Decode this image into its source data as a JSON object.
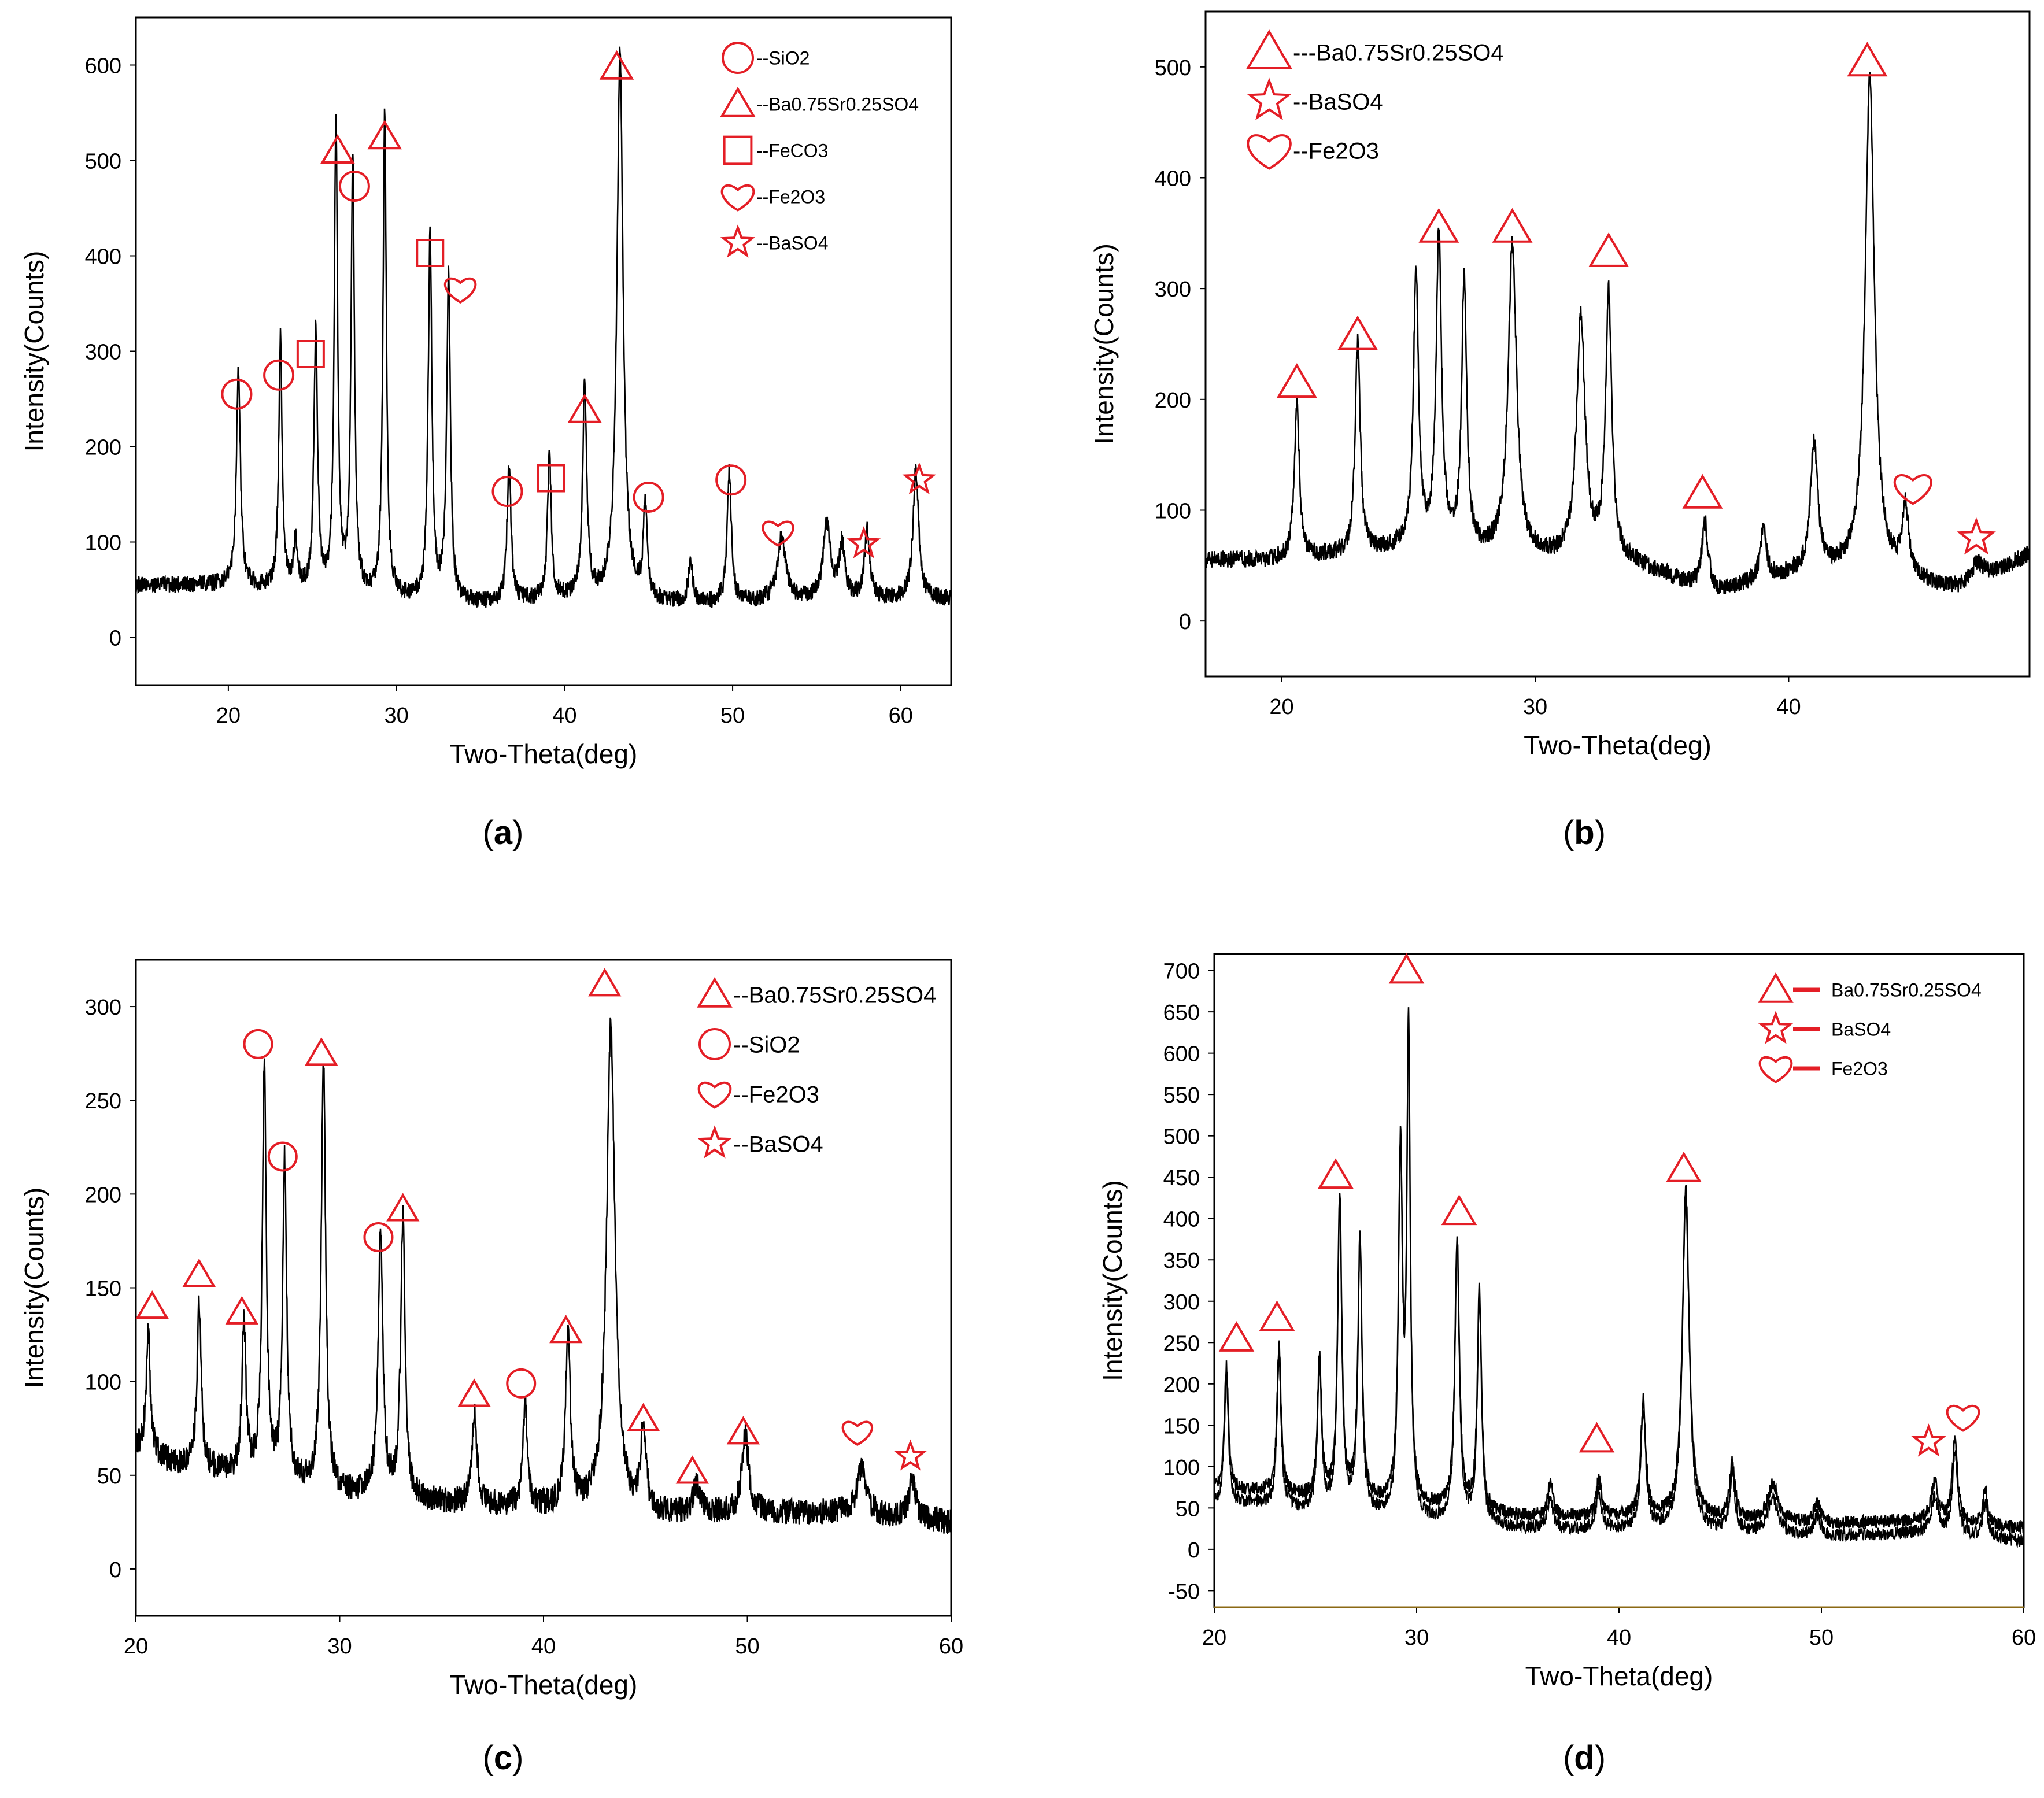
{
  "figure": {
    "accent_color": "#E41E26",
    "line_color": "#000000",
    "axis_color": "#000000"
  },
  "chart_data": [
    {
      "id": "a",
      "type": "line",
      "caption": "a",
      "xlabel": "Two-Theta(deg)",
      "ylabel": "Intensity(Counts)",
      "xlim": [
        14.5,
        63
      ],
      "ylim": [
        -50,
        650
      ],
      "xticks": [
        20,
        30,
        40,
        50,
        60
      ],
      "yticks": [
        0,
        100,
        200,
        300,
        400,
        500,
        600
      ],
      "baseline": [
        [
          14.5,
          55
        ],
        [
          20,
          55
        ],
        [
          25,
          45
        ],
        [
          30,
          40
        ],
        [
          35,
          35
        ],
        [
          40,
          40
        ],
        [
          45,
          35
        ],
        [
          50,
          35
        ],
        [
          55,
          40
        ],
        [
          60,
          40
        ],
        [
          63,
          40
        ]
      ],
      "noise": 9,
      "peaks": [
        [
          20.6,
          230,
          0.14
        ],
        [
          23.1,
          265,
          0.12
        ],
        [
          24.0,
          50,
          0.15
        ],
        [
          25.2,
          275,
          0.13
        ],
        [
          26.4,
          490,
          0.12
        ],
        [
          27.4,
          460,
          0.12
        ],
        [
          29.3,
          505,
          0.12
        ],
        [
          32.0,
          385,
          0.13
        ],
        [
          33.1,
          340,
          0.13
        ],
        [
          36.7,
          145,
          0.14
        ],
        [
          39.1,
          150,
          0.13
        ],
        [
          41.2,
          220,
          0.15
        ],
        [
          43.3,
          575,
          0.22
        ],
        [
          44.8,
          100,
          0.14
        ],
        [
          47.5,
          45,
          0.15
        ],
        [
          49.8,
          140,
          0.15
        ],
        [
          52.9,
          65,
          0.3
        ],
        [
          55.6,
          75,
          0.25
        ],
        [
          56.5,
          55,
          0.2
        ],
        [
          58.0,
          70,
          0.18
        ],
        [
          60.9,
          135,
          0.2
        ]
      ],
      "legend": [
        {
          "marker": "circle",
          "label": "--SiO2"
        },
        {
          "marker": "triangle",
          "label": "--Ba0.75Sr0.25SO4"
        },
        {
          "marker": "square",
          "label": "--FeCO3"
        },
        {
          "marker": "heart",
          "label": "--Fe2O3"
        },
        {
          "marker": "star",
          "label": "--BaSO4"
        }
      ],
      "annotations": [
        {
          "marker": "circle",
          "x": 20.5,
          "y": 255
        },
        {
          "marker": "circle",
          "x": 23.0,
          "y": 275
        },
        {
          "marker": "square",
          "x": 24.9,
          "y": 297
        },
        {
          "marker": "triangle",
          "x": 26.5,
          "y": 510
        },
        {
          "marker": "circle",
          "x": 27.5,
          "y": 473
        },
        {
          "marker": "triangle",
          "x": 29.3,
          "y": 525
        },
        {
          "marker": "square",
          "x": 32.0,
          "y": 403
        },
        {
          "marker": "heart",
          "x": 33.8,
          "y": 365
        },
        {
          "marker": "circle",
          "x": 36.6,
          "y": 153
        },
        {
          "marker": "square",
          "x": 39.2,
          "y": 167
        },
        {
          "marker": "triangle",
          "x": 41.2,
          "y": 238
        },
        {
          "marker": "triangle",
          "x": 43.1,
          "y": 598
        },
        {
          "marker": "circle",
          "x": 45.0,
          "y": 147
        },
        {
          "marker": "circle",
          "x": 49.9,
          "y": 165
        },
        {
          "marker": "heart",
          "x": 52.7,
          "y": 110
        },
        {
          "marker": "star",
          "x": 57.8,
          "y": 98
        },
        {
          "marker": "star",
          "x": 61.1,
          "y": 165
        }
      ]
    },
    {
      "id": "b",
      "type": "line",
      "caption": "b",
      "xlabel": "Two-Theta(deg)",
      "ylabel": "Intensity(Counts)",
      "xlim": [
        17,
        49.5
      ],
      "ylim": [
        -50,
        550
      ],
      "xticks": [
        20,
        30,
        40
      ],
      "yticks": [
        0,
        100,
        200,
        300,
        400,
        500
      ],
      "baseline": [
        [
          17,
          55
        ],
        [
          20,
          55
        ],
        [
          23,
          60
        ],
        [
          25,
          65
        ],
        [
          28,
          60
        ],
        [
          31,
          55
        ],
        [
          34,
          50
        ],
        [
          37,
          25
        ],
        [
          40,
          40
        ],
        [
          43,
          45
        ],
        [
          45,
          35
        ],
        [
          47,
          25
        ],
        [
          49.5,
          60
        ]
      ],
      "noise": 8,
      "peaks": [
        [
          20.6,
          140,
          0.12
        ],
        [
          23.0,
          190,
          0.12
        ],
        [
          25.3,
          250,
          0.12
        ],
        [
          26.2,
          285,
          0.13
        ],
        [
          27.2,
          245,
          0.12
        ],
        [
          29.1,
          280,
          0.2
        ],
        [
          31.8,
          220,
          0.2
        ],
        [
          32.9,
          240,
          0.15
        ],
        [
          36.7,
          60,
          0.15
        ],
        [
          39.0,
          45,
          0.15
        ],
        [
          41.0,
          115,
          0.18
        ],
        [
          43.2,
          445,
          0.22
        ],
        [
          44.6,
          60,
          0.15
        ],
        [
          47.4,
          20,
          0.4
        ]
      ],
      "legend": [
        {
          "marker": "triangle",
          "label": "---Ba0.75Sr0.25SO4"
        },
        {
          "marker": "star",
          "label": "--BaSO4"
        },
        {
          "marker": "heart",
          "label": "--Fe2O3"
        }
      ],
      "annotations": [
        {
          "marker": "triangle",
          "x": 20.6,
          "y": 215
        },
        {
          "marker": "triangle",
          "x": 23.0,
          "y": 258
        },
        {
          "marker": "triangle",
          "x": 26.2,
          "y": 355
        },
        {
          "marker": "triangle",
          "x": 29.1,
          "y": 355
        },
        {
          "marker": "triangle",
          "x": 32.9,
          "y": 333
        },
        {
          "marker": "triangle",
          "x": 36.6,
          "y": 115
        },
        {
          "marker": "triangle",
          "x": 43.1,
          "y": 505
        },
        {
          "marker": "heart",
          "x": 44.9,
          "y": 120
        },
        {
          "marker": "star",
          "x": 47.4,
          "y": 75
        }
      ]
    },
    {
      "id": "c",
      "type": "line",
      "caption": "c",
      "xlabel": "Two-Theta(deg)",
      "ylabel": "Intensity(Counts)",
      "xlim": [
        20,
        60
      ],
      "ylim": [
        -25,
        325
      ],
      "xticks": [
        20,
        30,
        40,
        50,
        60
      ],
      "yticks": [
        0,
        50,
        100,
        150,
        200,
        250,
        300
      ],
      "baseline": [
        [
          20,
          65
        ],
        [
          22,
          55
        ],
        [
          25,
          50
        ],
        [
          30,
          40
        ],
        [
          35,
          35
        ],
        [
          40,
          32
        ],
        [
          45,
          28
        ],
        [
          50,
          30
        ],
        [
          55,
          30
        ],
        [
          60,
          25
        ]
      ],
      "noise": 7,
      "peaks": [
        [
          20.6,
          65,
          0.12
        ],
        [
          23.1,
          90,
          0.12
        ],
        [
          25.3,
          80,
          0.12
        ],
        [
          26.3,
          220,
          0.12
        ],
        [
          27.3,
          170,
          0.12
        ],
        [
          29.2,
          230,
          0.13
        ],
        [
          32.0,
          140,
          0.14
        ],
        [
          33.1,
          150,
          0.13
        ],
        [
          36.6,
          50,
          0.14
        ],
        [
          39.1,
          55,
          0.13
        ],
        [
          41.2,
          90,
          0.15
        ],
        [
          43.3,
          260,
          0.25
        ],
        [
          44.9,
          45,
          0.15
        ],
        [
          47.5,
          15,
          0.2
        ],
        [
          49.9,
          40,
          0.2
        ],
        [
          55.6,
          25,
          0.25
        ],
        [
          58.1,
          20,
          0.2
        ]
      ],
      "legend": [
        {
          "marker": "triangle",
          "label": "--Ba0.75Sr0.25SO4"
        },
        {
          "marker": "circle",
          "label": "--SiO2"
        },
        {
          "marker": "heart",
          "label": "--Fe2O3"
        },
        {
          "marker": "star",
          "label": "--BaSO4"
        }
      ],
      "annotations": [
        {
          "marker": "triangle",
          "x": 20.8,
          "y": 140
        },
        {
          "marker": "triangle",
          "x": 23.1,
          "y": 157
        },
        {
          "marker": "triangle",
          "x": 25.2,
          "y": 137
        },
        {
          "marker": "circle",
          "x": 26.0,
          "y": 280
        },
        {
          "marker": "circle",
          "x": 27.2,
          "y": 220
        },
        {
          "marker": "triangle",
          "x": 29.1,
          "y": 275
        },
        {
          "marker": "circle",
          "x": 31.9,
          "y": 177
        },
        {
          "marker": "triangle",
          "x": 33.1,
          "y": 192
        },
        {
          "marker": "triangle",
          "x": 36.6,
          "y": 93
        },
        {
          "marker": "circle",
          "x": 38.9,
          "y": 99
        },
        {
          "marker": "triangle",
          "x": 41.1,
          "y": 127
        },
        {
          "marker": "triangle",
          "x": 43.0,
          "y": 312
        },
        {
          "marker": "triangle",
          "x": 44.9,
          "y": 80
        },
        {
          "marker": "triangle",
          "x": 47.3,
          "y": 52
        },
        {
          "marker": "triangle",
          "x": 49.8,
          "y": 73
        },
        {
          "marker": "heart",
          "x": 55.4,
          "y": 73
        },
        {
          "marker": "star",
          "x": 58.0,
          "y": 60
        }
      ]
    },
    {
      "id": "d",
      "type": "line",
      "caption": "d",
      "xlabel": "Two-Theta(deg)",
      "ylabel": "Intensity(Counts)",
      "xlim": [
        20,
        60
      ],
      "ylim": [
        -70,
        720
      ],
      "xticks": [
        20,
        30,
        40,
        50,
        60
      ],
      "yticks": [
        -50,
        0,
        50,
        100,
        150,
        200,
        250,
        300,
        350,
        400,
        450,
        500,
        550,
        600,
        650,
        700
      ],
      "baseline": [
        [
          20,
          70
        ],
        [
          22,
          70
        ],
        [
          25,
          60
        ],
        [
          30,
          50
        ],
        [
          35,
          40
        ],
        [
          40,
          38
        ],
        [
          45,
          35
        ],
        [
          50,
          30
        ],
        [
          55,
          35
        ],
        [
          60,
          25
        ]
      ],
      "baseline2_offset": -15,
      "noise": 8,
      "peaks": [
        [
          20.6,
          150,
          0.12
        ],
        [
          23.2,
          180,
          0.12
        ],
        [
          25.2,
          170,
          0.12
        ],
        [
          26.2,
          370,
          0.12
        ],
        [
          27.2,
          320,
          0.12
        ],
        [
          29.2,
          420,
          0.12
        ],
        [
          29.6,
          560,
          0.1
        ],
        [
          32.0,
          330,
          0.13
        ],
        [
          33.1,
          270,
          0.12
        ],
        [
          36.6,
          40,
          0.15
        ],
        [
          39.0,
          45,
          0.15
        ],
        [
          41.2,
          140,
          0.15
        ],
        [
          43.3,
          400,
          0.2
        ],
        [
          45.6,
          70,
          0.15
        ],
        [
          47.6,
          45,
          0.3
        ],
        [
          49.8,
          25,
          0.2
        ],
        [
          55.6,
          45,
          0.2
        ],
        [
          56.6,
          100,
          0.15
        ],
        [
          58.1,
          40,
          0.15
        ]
      ],
      "legend": [
        {
          "marker": "triangle",
          "label": "Ba0.75Sr0.25SO4"
        },
        {
          "marker": "star",
          "label": "BaSO4"
        },
        {
          "marker": "heart",
          "label": "Fe2O3"
        }
      ],
      "annotations": [
        {
          "marker": "triangle",
          "x": 21.1,
          "y": 255
        },
        {
          "marker": "triangle",
          "x": 23.1,
          "y": 280
        },
        {
          "marker": "triangle",
          "x": 26.0,
          "y": 452
        },
        {
          "marker": "triangle",
          "x": 29.5,
          "y": 700
        },
        {
          "marker": "triangle",
          "x": 32.1,
          "y": 408
        },
        {
          "marker": "triangle",
          "x": 38.9,
          "y": 133
        },
        {
          "marker": "triangle",
          "x": 43.2,
          "y": 460
        },
        {
          "marker": "star",
          "x": 55.3,
          "y": 130
        },
        {
          "marker": "heart",
          "x": 57.0,
          "y": 160
        }
      ]
    }
  ]
}
